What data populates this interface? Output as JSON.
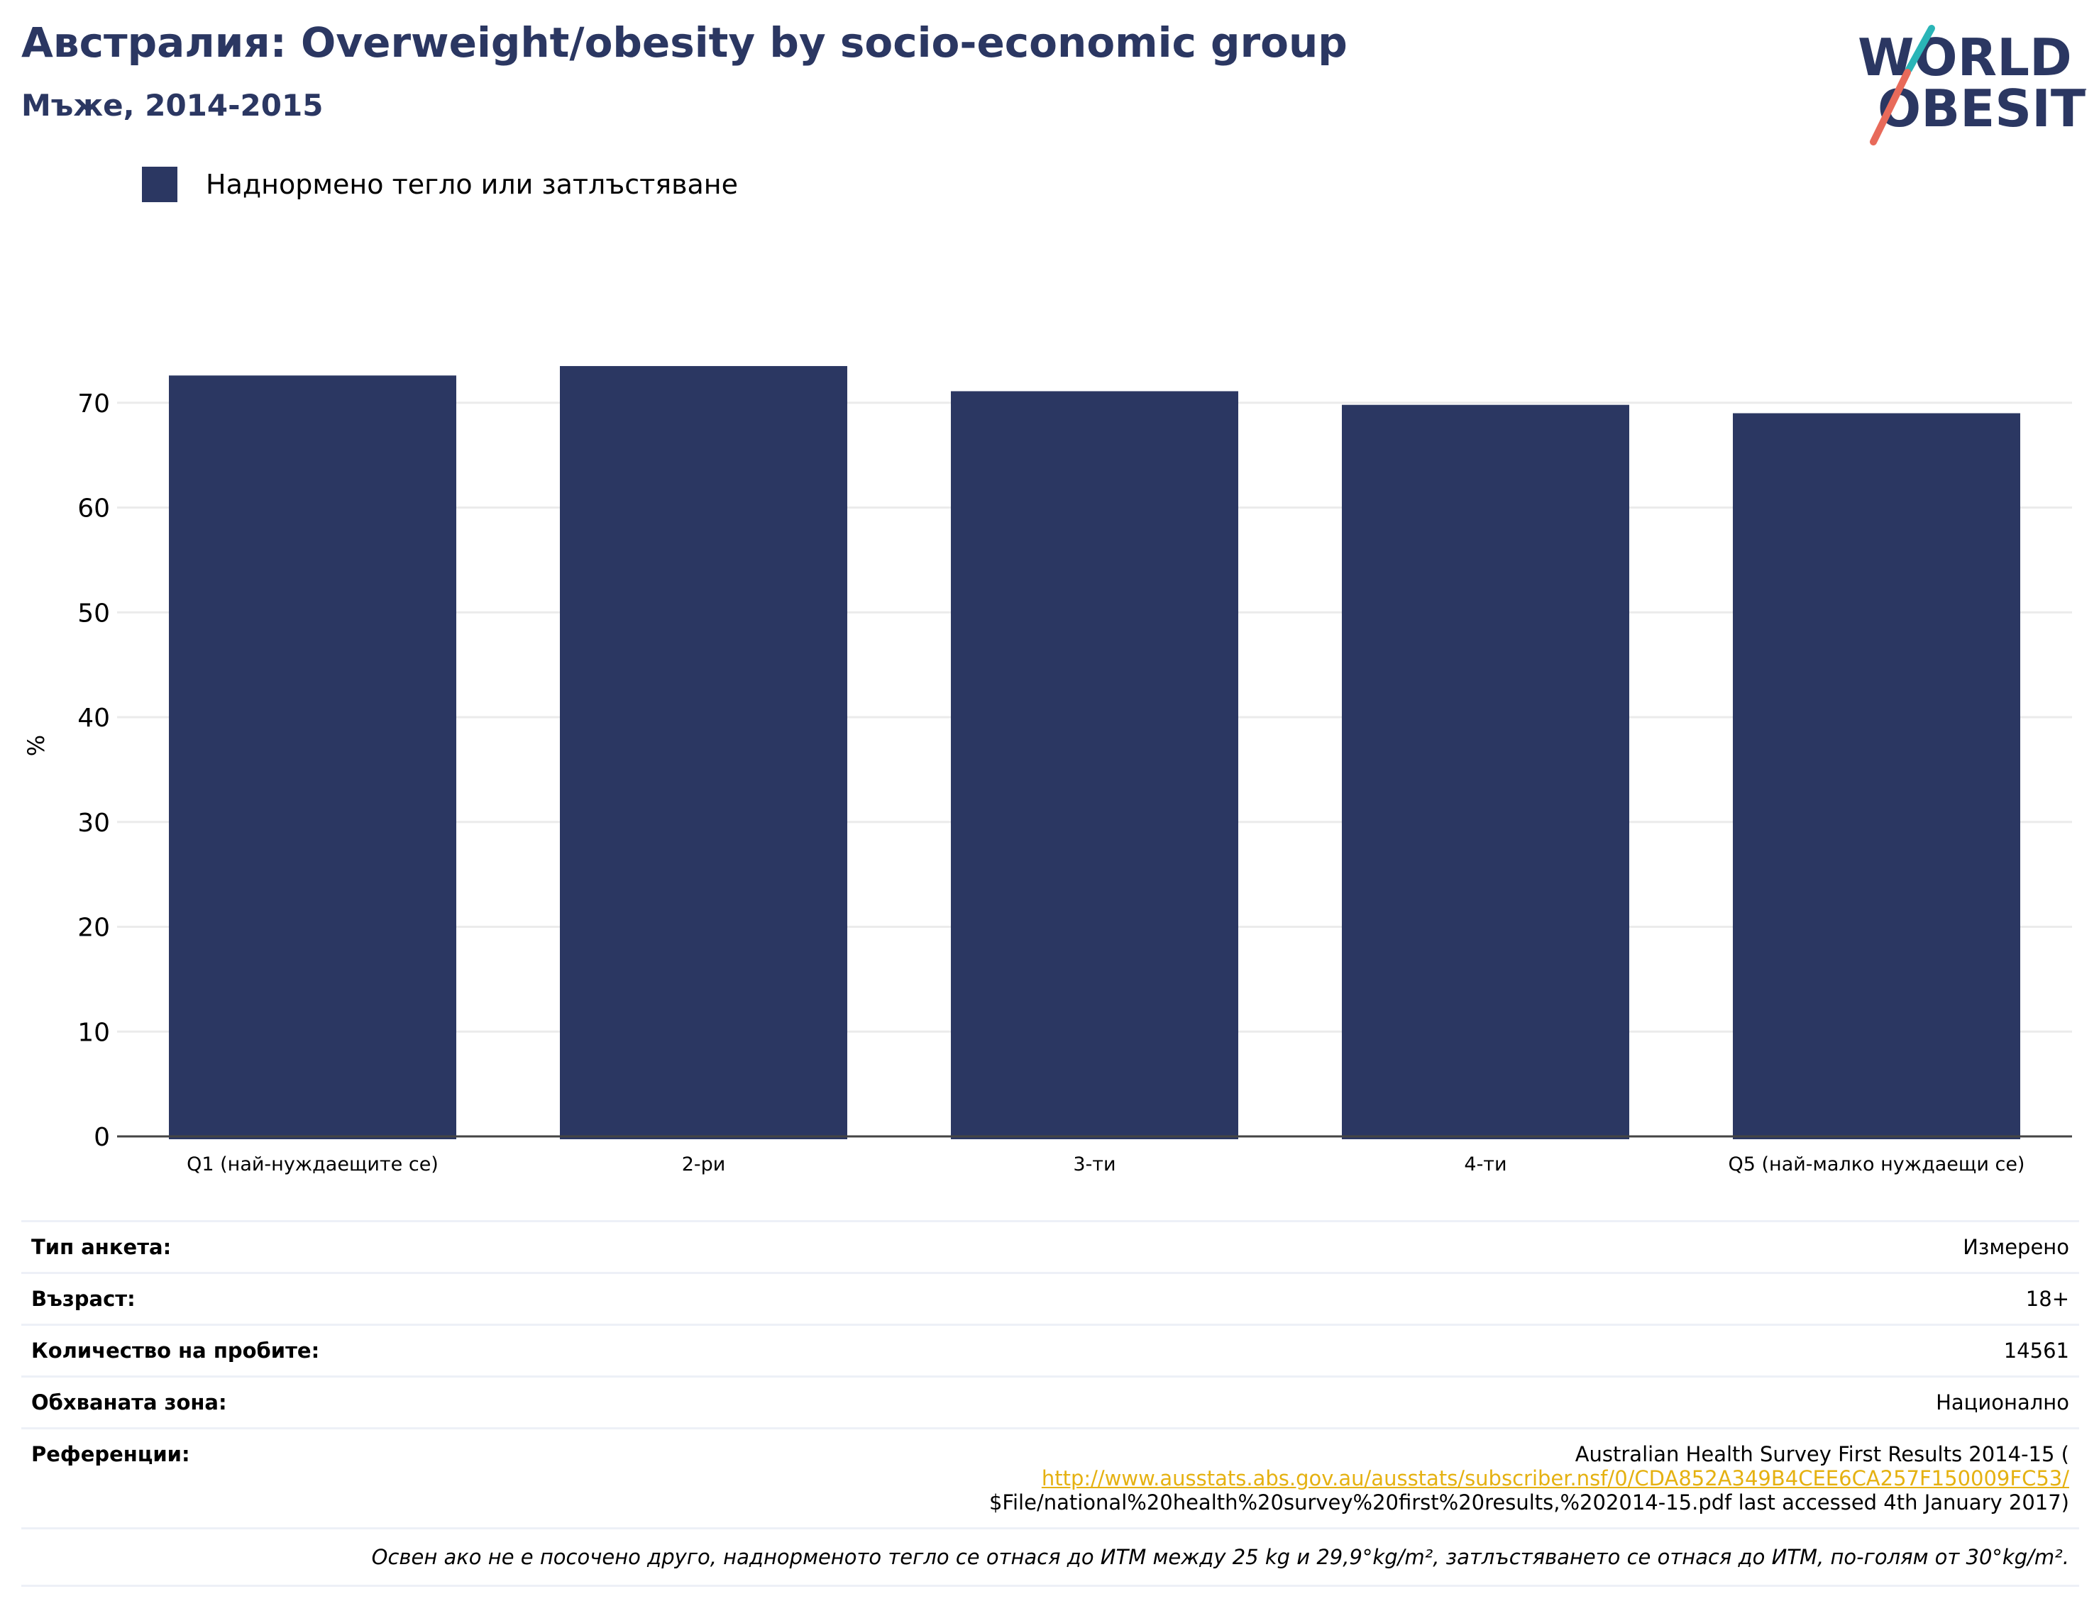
{
  "header": {
    "title": "Австралия: Overweight/obesity by socio-economic group",
    "subtitle": "Мъже, 2014-2015"
  },
  "logo": {
    "line1": "WORLD",
    "line2": "OBESITY",
    "colors": {
      "text": "#2b3762",
      "slash_top": "#2ab5b7",
      "slash_bottom": "#e86a5a"
    }
  },
  "legend": {
    "label": "Наднормено тегло или затлъстяване",
    "color": "#2b3762"
  },
  "chart_data": {
    "type": "bar",
    "categories": [
      "Q1 (най-нуждаещите се)",
      "2-ри",
      "3-ти",
      "4-ти",
      "Q5 (най-малко нуждаещи се)"
    ],
    "series": [
      {
        "name": "Наднормено тегло или затлъстяване",
        "values": [
          72.6,
          73.5,
          71.1,
          69.8,
          69.0
        ],
        "color": "#2b3762"
      }
    ],
    "ylabel": "%",
    "xlabel": "",
    "ylim": [
      0,
      80
    ],
    "yticks": [
      0,
      10,
      20,
      30,
      40,
      50,
      60,
      70
    ],
    "grid": true,
    "legend_position": "top-left"
  },
  "info": {
    "rows": [
      {
        "key": "Тип анкета:",
        "value": "Измерено"
      },
      {
        "key": "Възраст:",
        "value": "18+"
      },
      {
        "key": "Количество на пробите:",
        "value": "14561"
      },
      {
        "key": "Обхваната зона:",
        "value": "Национално"
      }
    ],
    "references": {
      "key": "Референции:",
      "line1": "Australian Health Survey First Results 2014-15 (",
      "link": "http://www.ausstats.abs.gov.au/ausstats/subscriber.nsf/0/CDA852A349B4CEE6CA257F150009FC53/",
      "line3": "$File/national%20health%20survey%20first%20results,%202014-15.pdf last accessed 4th January 2017)"
    },
    "note": "Освен ако не е посочено друго, наднорменото тегло се отнася до ИТМ между 25 kg и 29,9°kg/m², затлъстяването се отнася до ИТМ, по-голям от 30°kg/m²."
  }
}
